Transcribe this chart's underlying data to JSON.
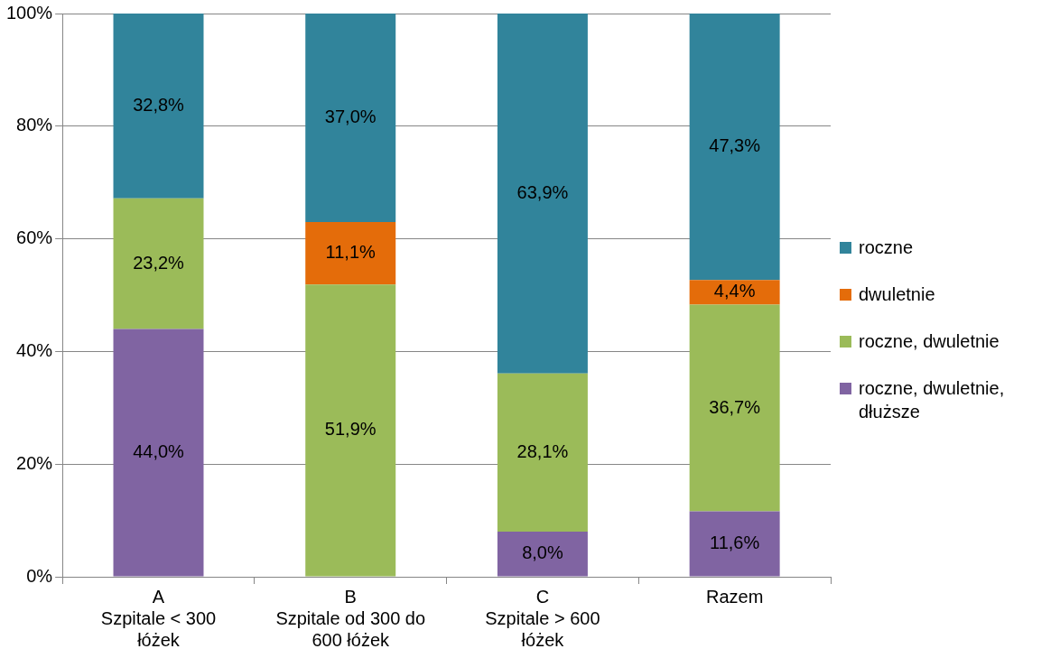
{
  "chart_data": {
    "type": "bar",
    "stacked": true,
    "categories": [
      "A\nSzpitale < 300\nłóżek",
      "B\nSzpitale od 300 do\n600 łóżek",
      "C\nSzpitale > 600\nłóżek",
      "Razem"
    ],
    "series": [
      {
        "name": "roczne, dwuletnie, dłuższe",
        "color": "#8064a2",
        "values": [
          44.0,
          null,
          8.0,
          11.6
        ],
        "value_labels": [
          "44,0%",
          null,
          "8,0%",
          "11,6%"
        ]
      },
      {
        "name": "roczne, dwuletnie",
        "color": "#9bbb59",
        "values": [
          23.2,
          51.9,
          28.1,
          36.7
        ],
        "value_labels": [
          "23,2%",
          "51,9%",
          "28,1%",
          "36,7%"
        ]
      },
      {
        "name": "dwuletnie",
        "color": "#e46c0a",
        "values": [
          null,
          11.1,
          null,
          4.4
        ],
        "value_labels": [
          null,
          "11,1%",
          null,
          "4,4%"
        ]
      },
      {
        "name": "roczne",
        "color": "#31849b",
        "values": [
          32.8,
          37.0,
          63.9,
          47.3
        ],
        "value_labels": [
          "32,8%",
          "37,0%",
          "63,9%",
          "47,3%"
        ]
      }
    ],
    "ylim": [
      0,
      100
    ],
    "yticks": [
      {
        "value": 0,
        "label": "0%"
      },
      {
        "value": 20,
        "label": "20%"
      },
      {
        "value": 40,
        "label": "40%"
      },
      {
        "value": 60,
        "label": "60%"
      },
      {
        "value": 80,
        "label": "80%"
      },
      {
        "value": 100,
        "label": "100%"
      }
    ],
    "grid": "y",
    "legend": "right"
  }
}
